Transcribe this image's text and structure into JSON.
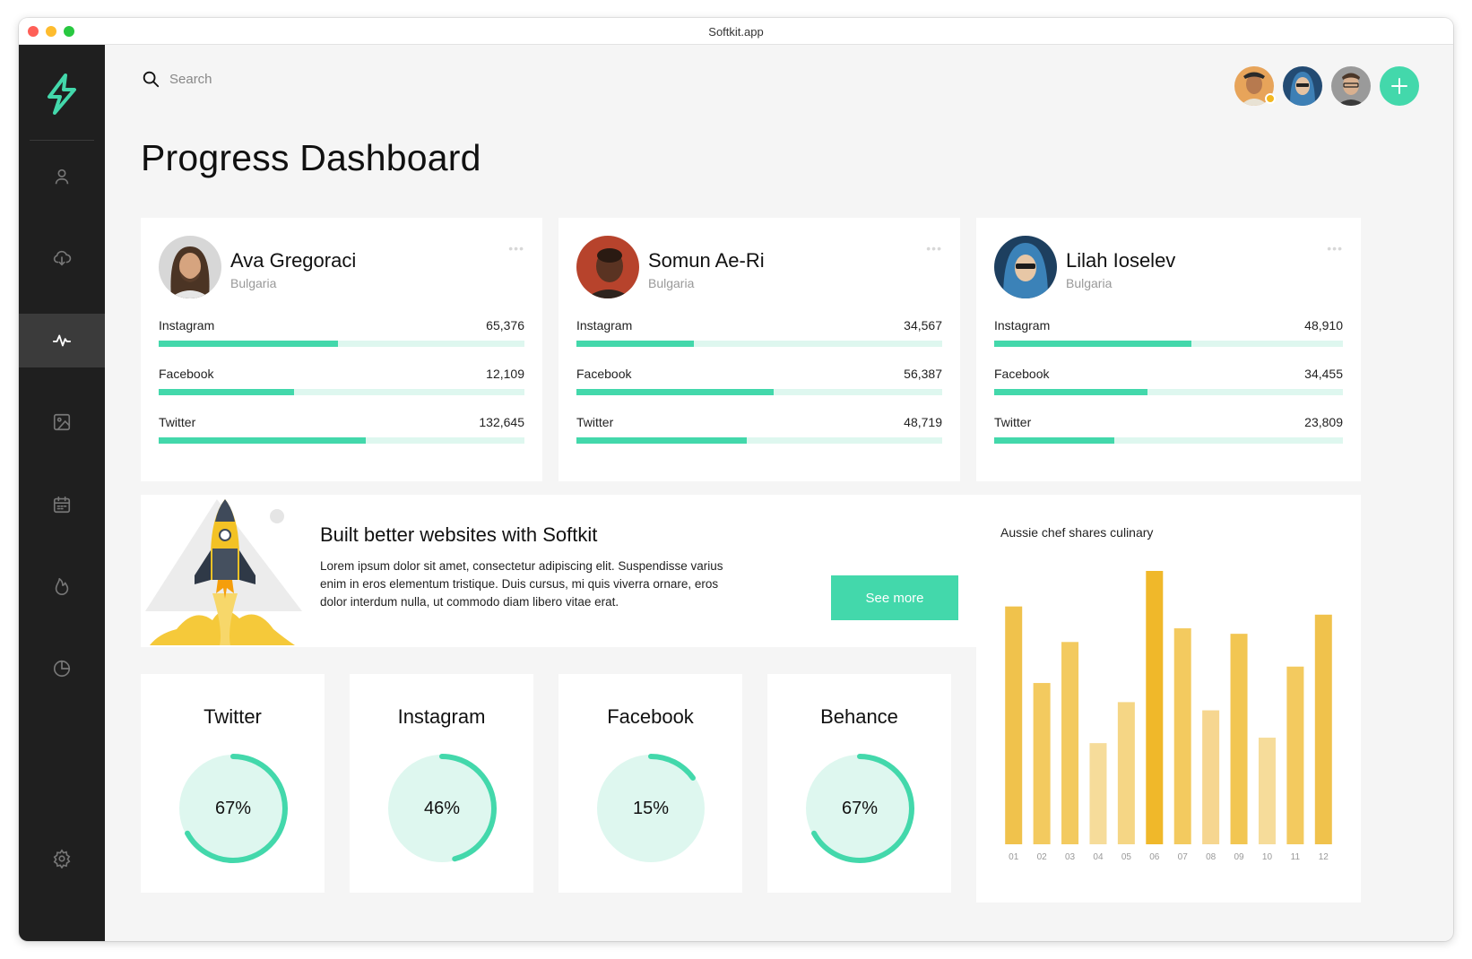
{
  "window": {
    "title": "Softkit.app"
  },
  "search": {
    "placeholder": "Search",
    "value": ""
  },
  "page": {
    "title": "Progress Dashboard"
  },
  "header": {
    "add_label": "+"
  },
  "colors": {
    "accent": "#43d8ab",
    "accent_light": "#def7ef",
    "sidebar": "#1f1f1f",
    "bar_gold": "#f0c24c"
  },
  "profiles": [
    {
      "name": "Ava Gregoraci",
      "country": "Bulgaria",
      "stats": [
        {
          "label": "Instagram",
          "value": "65,376",
          "progress": 0.49
        },
        {
          "label": "Facebook",
          "value": "12,109",
          "progress": 0.37
        },
        {
          "label": "Twitter",
          "value": "132,645",
          "progress": 0.565
        }
      ]
    },
    {
      "name": "Somun Ae-Ri",
      "country": "Bulgaria",
      "stats": [
        {
          "label": "Instagram",
          "value": "34,567",
          "progress": 0.32
        },
        {
          "label": "Facebook",
          "value": "56,387",
          "progress": 0.54
        },
        {
          "label": "Twitter",
          "value": "48,719",
          "progress": 0.465
        }
      ]
    },
    {
      "name": "Lilah Ioselev",
      "country": "Bulgaria",
      "stats": [
        {
          "label": "Instagram",
          "value": "48,910",
          "progress": 0.565
        },
        {
          "label": "Facebook",
          "value": "34,455",
          "progress": 0.44
        },
        {
          "label": "Twitter",
          "value": "23,809",
          "progress": 0.345
        }
      ]
    }
  ],
  "promo": {
    "title": "Built better websites with Softkit",
    "text": "Lorem ipsum dolor sit amet, consectetur adipiscing elit. Suspendisse varius enim in eros elementum tristique. Duis cursus, mi quis viverra ornare, eros dolor interdum nulla, ut commodo diam libero vitae erat.",
    "button": "See more"
  },
  "rings": [
    {
      "title": "Twitter",
      "label": "67%",
      "value": 0.67
    },
    {
      "title": "Instagram",
      "label": "46%",
      "value": 0.46
    },
    {
      "title": "Facebook",
      "label": "15%",
      "value": 0.15
    },
    {
      "title": "Behance",
      "label": "67%",
      "value": 0.67
    }
  ],
  "chart_data": {
    "type": "bar",
    "title": "Aussie chef shares culinary",
    "categories": [
      "01",
      "02",
      "03",
      "04",
      "05",
      "06",
      "07",
      "08",
      "09",
      "10",
      "11",
      "12"
    ],
    "values": [
      87,
      59,
      74,
      37,
      52,
      100,
      79,
      49,
      77,
      39,
      65,
      84
    ],
    "ylim": [
      0,
      100
    ],
    "grid": false,
    "bar_colors": [
      "#f0c24c",
      "#f3ca5f",
      "#f3ca5f",
      "#f6dc9a",
      "#f5d685",
      "#f0b82a",
      "#f3ca5f",
      "#f6d690",
      "#f2c652",
      "#f6dc9a",
      "#f3ca5f",
      "#f0c24c"
    ]
  }
}
